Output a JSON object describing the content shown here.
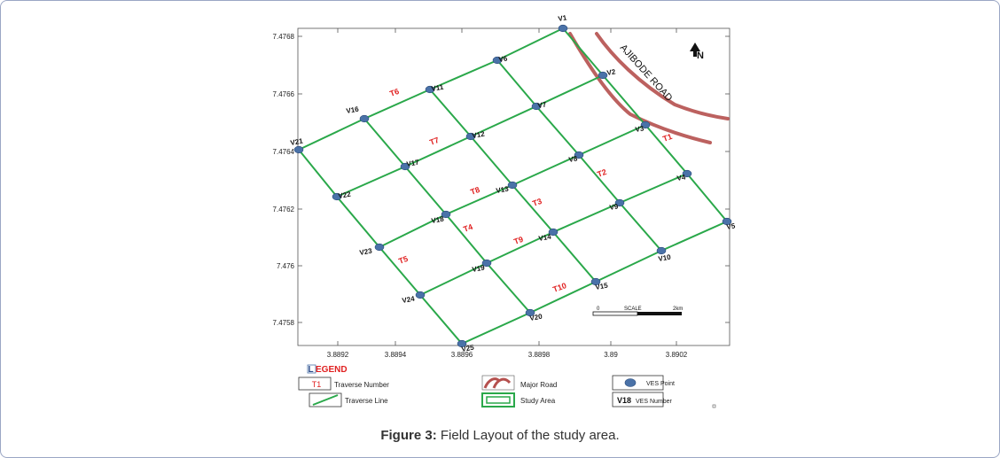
{
  "caption": {
    "label": "Figure 3:",
    "text": " Field Layout of the study area."
  },
  "map": {
    "north_symbol": "N",
    "road_label": "AJIBODE ROAD",
    "y_ticks": [
      "7.4768",
      "7.4766",
      "7.4764",
      "7.4762",
      "7.476",
      "7.4758"
    ],
    "x_ticks": [
      "3.8892",
      "3.8894",
      "3.8896",
      "3.8898",
      "3.89",
      "3.8902"
    ],
    "scale": {
      "start": "0",
      "label": "SCALE",
      "end": "2km"
    },
    "colors": {
      "traverse_line": "#2aa84a",
      "road": "#b5504e",
      "ves_point": "#4a72a8",
      "traverse_number": "#e02020"
    },
    "ves_points": [
      "V1",
      "V2",
      "V3",
      "V4",
      "V5",
      "V6",
      "V7",
      "V8",
      "V9",
      "V10",
      "V11",
      "V12",
      "V13",
      "V14",
      "V15",
      "V16",
      "V17",
      "V18",
      "V19",
      "V20",
      "V21",
      "V22",
      "V23",
      "V24",
      "V25"
    ],
    "traverses": [
      "T1",
      "T2",
      "T3",
      "T4",
      "T5",
      "T6",
      "T7",
      "T8",
      "T9",
      "T10"
    ]
  },
  "legend": {
    "title": "LEGEND",
    "title_first": "L",
    "title_rest": "EGEND",
    "traverse_number_sample": "T1",
    "traverse_number": "Traverse Number",
    "traverse_line": "Traverse Line",
    "major_road": "Major Road",
    "study_area": "Study Area",
    "ves_point": "VES Point",
    "ves_number_sample": "V18",
    "ves_number": "VES Number"
  }
}
